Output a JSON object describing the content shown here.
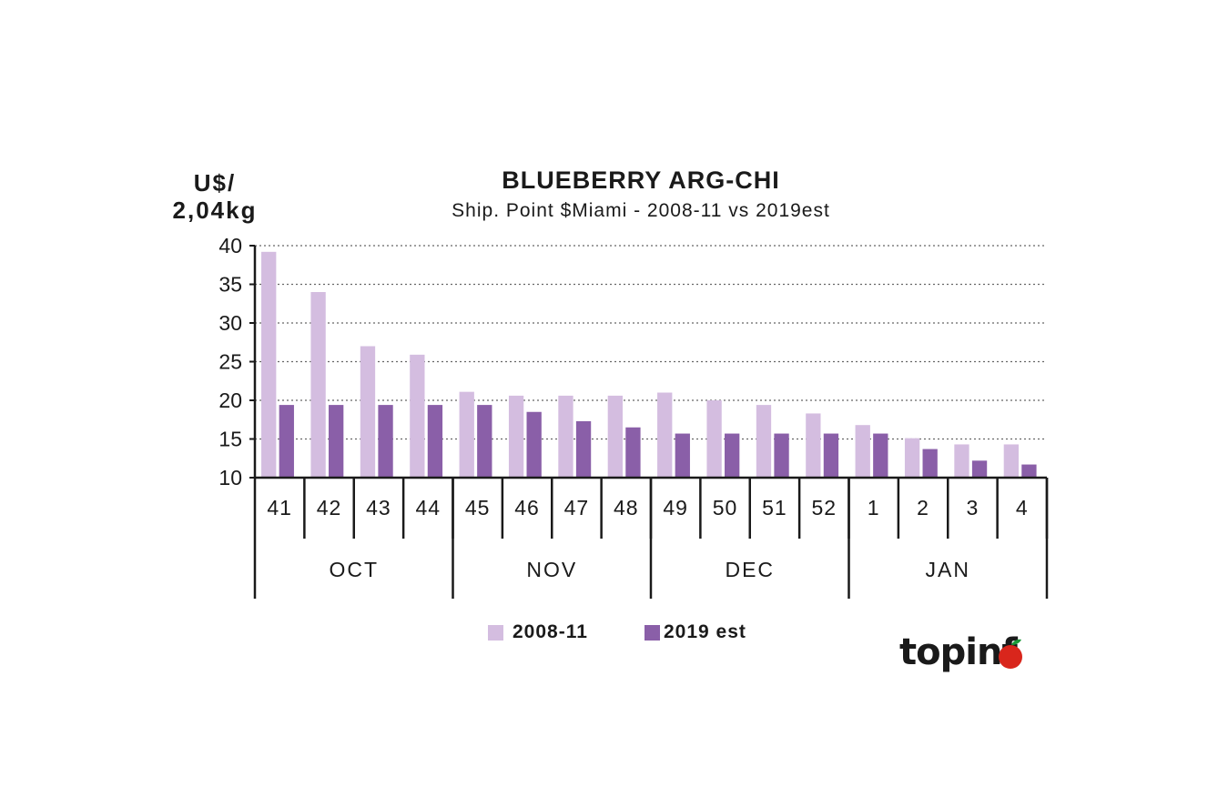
{
  "chart_data": {
    "type": "bar",
    "title": "BLUEBERRY ARG-CHI",
    "subtitle": "Ship. Point $Miami - 2008-11 vs 2019est",
    "ylabel_line1": "U$/",
    "ylabel_line2": "2,04kg",
    "ylim": [
      10,
      40
    ],
    "yticks": [
      10,
      15,
      20,
      25,
      30,
      35,
      40
    ],
    "grid": true,
    "legend_position": "bottom",
    "categories": [
      "41",
      "42",
      "43",
      "44",
      "45",
      "46",
      "47",
      "48",
      "49",
      "50",
      "51",
      "52",
      "1",
      "2",
      "3",
      "4"
    ],
    "months": [
      {
        "label": "OCT",
        "weeks": 4
      },
      {
        "label": "NOV",
        "weeks": 4
      },
      {
        "label": "DEC",
        "weeks": 4
      },
      {
        "label": "JAN",
        "weeks": 4
      }
    ],
    "series": [
      {
        "name": "2008-11",
        "color": "#d4bde0",
        "values": [
          39.2,
          34.0,
          27.0,
          25.9,
          21.1,
          20.6,
          20.6,
          20.6,
          21.0,
          20.0,
          19.4,
          18.3,
          16.8,
          15.1,
          14.3,
          14.3
        ]
      },
      {
        "name": "2019 est",
        "color": "#8a5fa8",
        "values": [
          19.4,
          19.4,
          19.4,
          19.4,
          19.4,
          18.5,
          17.3,
          16.5,
          15.7,
          15.7,
          15.7,
          15.7,
          15.7,
          13.7,
          12.2,
          11.7
        ]
      }
    ]
  },
  "legend": {
    "label_1": "2008-11",
    "label_2": "2019 est"
  },
  "logo": {
    "text": "topinf"
  }
}
